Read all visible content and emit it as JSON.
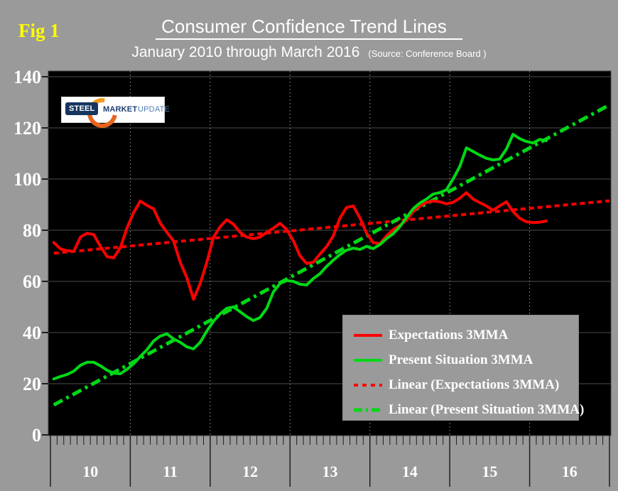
{
  "figure_label": "Fig 1",
  "header": {
    "title": "Consumer Confidence Trend Lines",
    "subtitle": "January 2010 through March 2016",
    "source_note": "(Source: Conference Board )"
  },
  "logo": {
    "word1": "STEEL",
    "word2": "MARKET",
    "word3": "UPDATE"
  },
  "colors": {
    "background": "#9a9a9a",
    "plot_background": "#000000",
    "expectations": "#fe0000",
    "present_situation": "#00d816",
    "text": "#ffffff",
    "fig_label": "#ffff00",
    "gridline": "#4d4d4d",
    "year_gridline": "#999999",
    "tick": "#1f1f1f",
    "plot_border": "#3c3c3c"
  },
  "legend": {
    "position": "lower-right",
    "items": [
      {
        "label": "Expectations 3MMA",
        "color_key": "expectations",
        "line_style": "solid"
      },
      {
        "label": "Present Situation 3MMA",
        "color_key": "present_situation",
        "line_style": "solid"
      },
      {
        "label": "Linear (Expectations 3MMA)",
        "color_key": "expectations",
        "line_style": "dashed"
      },
      {
        "label": "Linear (Present Situation 3MMA)",
        "color_key": "present_situation",
        "line_style": "dash-dot"
      }
    ]
  },
  "chart_data": {
    "type": "line",
    "title": "Consumer Confidence Trend Lines",
    "subtitle": "January 2010 through March 2016",
    "x_unit": "month",
    "x_start": "2010-01",
    "x_end": "2016-03",
    "n_points": 75,
    "x_tick_labels": [
      "10",
      "11",
      "12",
      "13",
      "14",
      "15",
      "16"
    ],
    "ylim": [
      0,
      140
    ],
    "y_ticks": [
      0,
      20,
      40,
      60,
      80,
      100,
      120,
      140
    ],
    "grid": true,
    "legend_position": "lower-right",
    "series": [
      {
        "name": "Expectations 3MMA",
        "type": "data",
        "color_key": "expectations",
        "line_style": "solid",
        "values": [
          75.2,
          72.7,
          72.0,
          71.7,
          77.3,
          78.8,
          78.3,
          73.7,
          69.7,
          69.2,
          73.2,
          80.8,
          86.9,
          91.4,
          89.7,
          88.4,
          82.8,
          79.2,
          75.8,
          67.5,
          61.4,
          53.0,
          59.2,
          67.5,
          77.2,
          81.4,
          84.1,
          82.3,
          79.2,
          77.3,
          76.7,
          77.3,
          79.2,
          80.8,
          82.7,
          80.3,
          75.8,
          70.0,
          67.0,
          67.5,
          70.7,
          73.6,
          77.8,
          84.8,
          88.9,
          89.5,
          84.8,
          78.9,
          75.2,
          74.7,
          77.8,
          80.2,
          81.9,
          83.9,
          87.3,
          89.4,
          90.9,
          91.4,
          91.1,
          90.3,
          90.9,
          92.5,
          94.7,
          92.2,
          90.8,
          89.5,
          87.8,
          89.5,
          91.1,
          87.3,
          84.7,
          83.3,
          83.0,
          83.1,
          83.6
        ]
      },
      {
        "name": "Present Situation 3MMA",
        "type": "data",
        "color_key": "present_situation",
        "line_style": "solid",
        "values": [
          21.9,
          22.8,
          23.6,
          24.9,
          27.2,
          28.4,
          28.4,
          27.0,
          25.3,
          24.1,
          23.9,
          25.6,
          27.8,
          30.6,
          33.3,
          36.7,
          38.6,
          39.5,
          37.5,
          36.2,
          34.4,
          33.6,
          36.2,
          40.6,
          44.4,
          47.3,
          49.5,
          50.0,
          48.1,
          46.2,
          44.7,
          45.9,
          49.5,
          55.9,
          59.2,
          60.3,
          60.0,
          58.9,
          58.6,
          61.1,
          63.0,
          65.9,
          68.3,
          70.5,
          72.2,
          73.0,
          72.5,
          73.7,
          72.8,
          74.4,
          76.7,
          78.6,
          81.4,
          85.0,
          88.4,
          90.6,
          92.2,
          94.1,
          94.7,
          95.8,
          100.0,
          104.9,
          112.2,
          110.8,
          109.4,
          108.1,
          107.5,
          107.8,
          111.7,
          117.5,
          115.8,
          114.7,
          114.1,
          115.5,
          115.0
        ]
      },
      {
        "name": "Linear (Expectations 3MMA)",
        "type": "trend",
        "color_key": "expectations",
        "line_style": "dashed",
        "start_value": 71.0,
        "end_value": 91.5
      },
      {
        "name": "Linear (Present Situation 3MMA)",
        "type": "trend",
        "color_key": "present_situation",
        "line_style": "dash-dot",
        "start_value": 11.7,
        "end_value": 129.0
      }
    ]
  }
}
